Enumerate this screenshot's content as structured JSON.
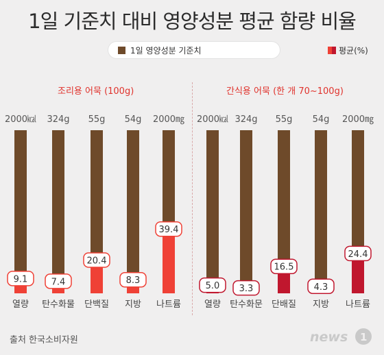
{
  "title": "1일 기준치 대비 영양성분 평균 함량 비율",
  "legend": {
    "base_label": "1일 영양성분 기준치",
    "avg_label": "평균(%)"
  },
  "source": "출처 한국소비자원",
  "logo": "news1",
  "colors": {
    "base": "#6e4a2a",
    "avg_cooking": "#ef4136",
    "avg_snack": "#c0172e",
    "accent_text": "#e0322c"
  },
  "chart_data": [
    {
      "type": "bar",
      "title": "조리용 어묵 (100g)",
      "categories": [
        "열량",
        "탄수화물",
        "단백질",
        "지방",
        "나트륨"
      ],
      "reference_labels": [
        "2000㎉",
        "324g",
        "55g",
        "54g",
        "2000㎎"
      ],
      "series": [
        {
          "name": "1일 영양성분 기준치",
          "values": [
            100,
            100,
            100,
            100,
            100
          ]
        },
        {
          "name": "평균(%)",
          "values": [
            9.1,
            7.4,
            20.4,
            8.3,
            39.4
          ]
        }
      ],
      "ylim": [
        0,
        100
      ]
    },
    {
      "type": "bar",
      "title": "간식용 어묵 (한 개 70~100g)",
      "categories": [
        "열량",
        "탄수화문",
        "단배질",
        "지방",
        "나트륨"
      ],
      "reference_labels": [
        "2000㎉",
        "324g",
        "55g",
        "54g",
        "2000㎎"
      ],
      "series": [
        {
          "name": "1일 영양성분 기준치",
          "values": [
            100,
            100,
            100,
            100,
            100
          ]
        },
        {
          "name": "평균(%)",
          "values": [
            5.0,
            3.3,
            16.5,
            4.3,
            24.4
          ]
        }
      ],
      "ylim": [
        0,
        100
      ]
    }
  ]
}
